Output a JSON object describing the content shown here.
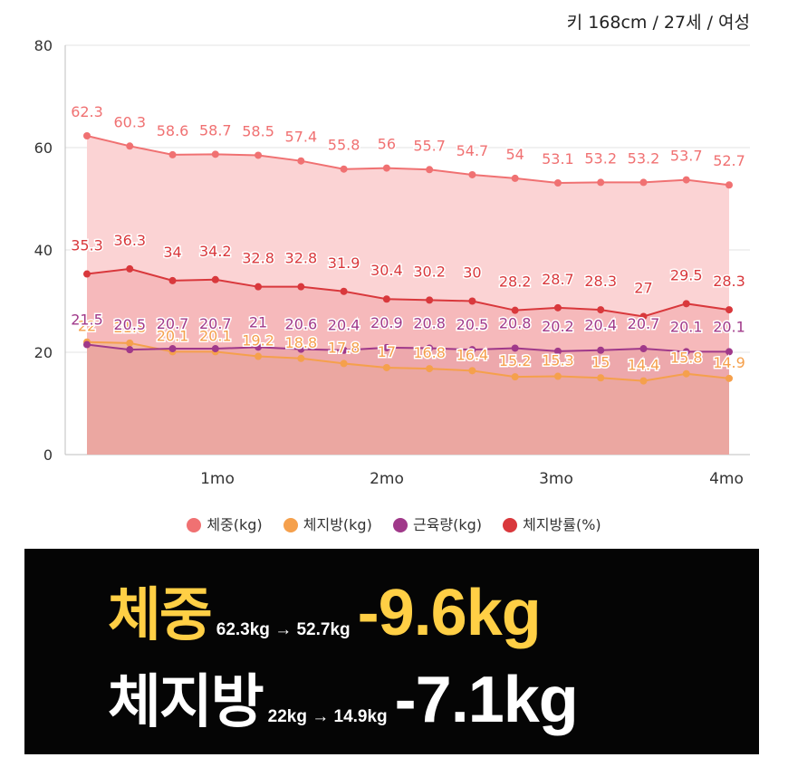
{
  "header": {
    "subtitle": "키 168cm / 27세 / 여성"
  },
  "chart_data": {
    "type": "area",
    "x_tick_labels": [
      "1mo",
      "2mo",
      "3mo",
      "4mo"
    ],
    "y_ticks": [
      0,
      20,
      40,
      60,
      80
    ],
    "ylim": [
      0,
      80
    ],
    "grid": true,
    "legend": "bottom",
    "points": 16,
    "series": [
      {
        "name": "체중(kg)",
        "color": "#f07172",
        "fill": "#fbd3d4",
        "values": [
          62.3,
          60.3,
          58.6,
          58.7,
          58.5,
          57.4,
          55.8,
          56,
          55.7,
          54.7,
          54,
          53.1,
          53.2,
          53.2,
          53.7,
          52.7
        ]
      },
      {
        "name": "체지방(kg)",
        "color": "#f5a04c",
        "fill": "#f0b79a",
        "values": [
          22,
          21.8,
          20.1,
          20.1,
          19.2,
          18.8,
          17.8,
          17,
          16.8,
          16.4,
          15.2,
          15.3,
          15,
          14.4,
          15.8,
          14.9
        ]
      },
      {
        "name": "근육량(kg)",
        "color": "#a0398a",
        "fill": "#e59aa0",
        "values": [
          21.5,
          20.5,
          20.7,
          20.7,
          21,
          20.6,
          20.4,
          20.9,
          20.8,
          20.5,
          20.8,
          20.2,
          20.4,
          20.7,
          20.1,
          20.1
        ]
      },
      {
        "name": "체지방률(%)",
        "color": "#d9383c",
        "fill": "#f4a9aa",
        "values": [
          35.3,
          36.3,
          34,
          34.2,
          32.8,
          32.8,
          31.9,
          30.4,
          30.2,
          30,
          28.2,
          28.7,
          28.3,
          27,
          29.5,
          28.3
        ]
      }
    ]
  },
  "summary": {
    "weight": {
      "label": "체중",
      "change": "62.3kg → 52.7kg",
      "diff": "-9.6kg",
      "color": "#ffcf45"
    },
    "fat": {
      "label": "체지방",
      "change": "22kg → 14.9kg",
      "diff": "-7.1kg",
      "color": "#ffffff"
    }
  }
}
